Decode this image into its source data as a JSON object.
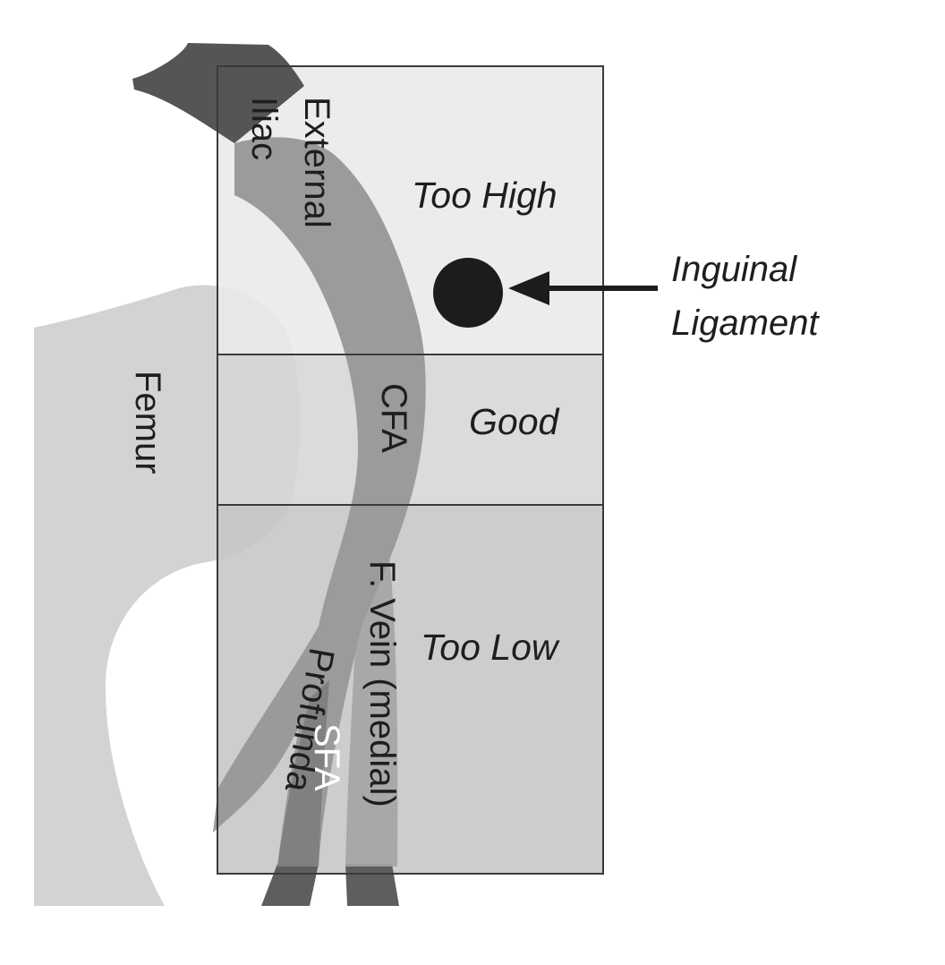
{
  "zones": {
    "too_high": "Too High",
    "good": "Good",
    "too_low": "Too Low"
  },
  "structures": {
    "femur": "Femur",
    "external": "External",
    "iliac": "Iliac",
    "cfa": "CFA",
    "femoral_vein": "F. Vein (medial)",
    "profunda": "Profunda",
    "sfa": "SFA"
  },
  "callout": {
    "line1": "Inguinal",
    "line2": "Ligament"
  },
  "colors": {
    "zone_too_high": "#e9e9e9",
    "zone_good": "#d6d6d6",
    "zone_too_low": "#c6c6c6",
    "femur": "#cbcbcb",
    "artery": "#999999",
    "vein_dark": "#5e5e5e",
    "ligament": "#1c1c1c",
    "outline": "#3a3a3a"
  }
}
